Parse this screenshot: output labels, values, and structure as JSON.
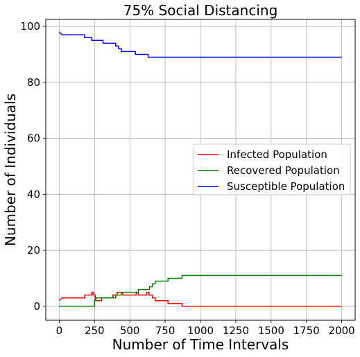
{
  "chart_data": {
    "type": "line",
    "step": true,
    "title": "75% Social Distancing",
    "xlabel": "Number of Time Intervals",
    "ylabel": "Number of Individuals",
    "xlim": [
      -95,
      2095
    ],
    "ylim": [
      -5,
      102.5
    ],
    "xticks": [
      0,
      250,
      500,
      750,
      1000,
      1250,
      1500,
      1750,
      2000
    ],
    "yticks": [
      0,
      20,
      40,
      60,
      80,
      100
    ],
    "grid": true,
    "legend_position": "center-right",
    "series": [
      {
        "name": "Infected Population",
        "color": "#ff0000",
        "points": [
          [
            0,
            2
          ],
          [
            20,
            3
          ],
          [
            180,
            3
          ],
          [
            180,
            4
          ],
          [
            230,
            4
          ],
          [
            230,
            5
          ],
          [
            240,
            5
          ],
          [
            240,
            4
          ],
          [
            255,
            4
          ],
          [
            255,
            2
          ],
          [
            300,
            2
          ],
          [
            300,
            3
          ],
          [
            380,
            3
          ],
          [
            380,
            4
          ],
          [
            410,
            4
          ],
          [
            410,
            5
          ],
          [
            450,
            5
          ],
          [
            450,
            4
          ],
          [
            545,
            4
          ],
          [
            545,
            5
          ],
          [
            560,
            5
          ],
          [
            560,
            4
          ],
          [
            620,
            4
          ],
          [
            620,
            5
          ],
          [
            635,
            5
          ],
          [
            635,
            4
          ],
          [
            660,
            4
          ],
          [
            660,
            3
          ],
          [
            680,
            3
          ],
          [
            680,
            2
          ],
          [
            770,
            2
          ],
          [
            770,
            1
          ],
          [
            870,
            1
          ],
          [
            870,
            0
          ],
          [
            2000,
            0
          ]
        ]
      },
      {
        "name": "Recovered Population",
        "color": "#008000",
        "points": [
          [
            0,
            0
          ],
          [
            250,
            0
          ],
          [
            250,
            2
          ],
          [
            260,
            2
          ],
          [
            260,
            3
          ],
          [
            400,
            3
          ],
          [
            400,
            4
          ],
          [
            440,
            4
          ],
          [
            440,
            5
          ],
          [
            560,
            5
          ],
          [
            560,
            6
          ],
          [
            640,
            6
          ],
          [
            640,
            7
          ],
          [
            660,
            7
          ],
          [
            660,
            8
          ],
          [
            680,
            8
          ],
          [
            680,
            9
          ],
          [
            770,
            9
          ],
          [
            770,
            10
          ],
          [
            870,
            10
          ],
          [
            870,
            11
          ],
          [
            2000,
            11
          ]
        ]
      },
      {
        "name": "Susceptible Population",
        "color": "#0000ff",
        "points": [
          [
            0,
            98
          ],
          [
            20,
            97
          ],
          [
            180,
            97
          ],
          [
            180,
            96
          ],
          [
            230,
            96
          ],
          [
            230,
            95
          ],
          [
            310,
            95
          ],
          [
            310,
            94
          ],
          [
            400,
            94
          ],
          [
            400,
            93
          ],
          [
            420,
            93
          ],
          [
            420,
            92
          ],
          [
            440,
            92
          ],
          [
            440,
            91
          ],
          [
            540,
            91
          ],
          [
            540,
            90
          ],
          [
            630,
            90
          ],
          [
            630,
            89
          ],
          [
            2000,
            89
          ]
        ]
      }
    ]
  }
}
